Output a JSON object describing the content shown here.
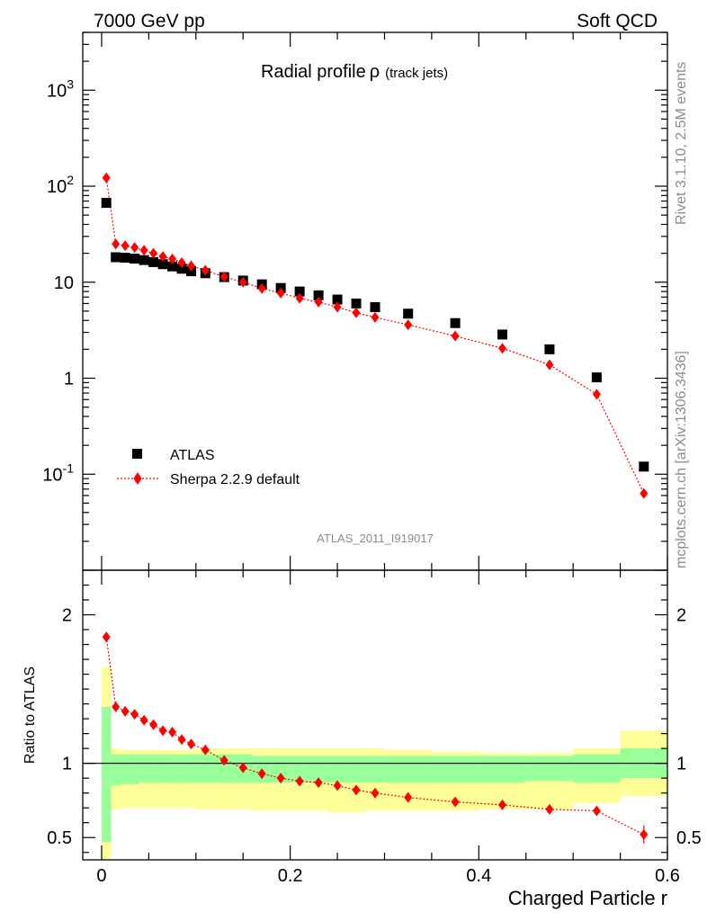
{
  "header": {
    "left": "7000 GeV pp",
    "right": "Soft QCD"
  },
  "side": {
    "top": "Rivet 3.1.10,  2.5M events",
    "bottom": "mcplots.cern.ch [arXiv:1306.3436]"
  },
  "chart_data": [
    {
      "type": "scatter",
      "title_main": "Radial profile",
      "title_symbol": "ρ",
      "title_sub": "(track jets)",
      "watermark": "ATLAS_2011_I919017",
      "xlabel": "Charged Particle r",
      "ylabel": "",
      "xlim": [
        -0.02,
        0.6
      ],
      "ylim": [
        0.01,
        4000
      ],
      "yscale": "log",
      "yticks": [
        "10^-1",
        "1",
        "10",
        "10^2",
        "10^3"
      ],
      "legend_position": "lower-left",
      "series": [
        {
          "name": "ATLAS",
          "marker": "square",
          "color": "#000000",
          "x": [
            0.005,
            0.015,
            0.025,
            0.035,
            0.045,
            0.055,
            0.065,
            0.075,
            0.085,
            0.095,
            0.11,
            0.13,
            0.15,
            0.17,
            0.19,
            0.21,
            0.23,
            0.25,
            0.27,
            0.29,
            0.325,
            0.375,
            0.425,
            0.475,
            0.525,
            0.575
          ],
          "y": [
            67,
            18.2,
            18.0,
            17.6,
            17.0,
            16.2,
            15.4,
            14.6,
            13.8,
            13.0,
            12.4,
            11.3,
            10.4,
            9.5,
            8.7,
            8.0,
            7.3,
            6.6,
            6.0,
            5.5,
            4.7,
            3.75,
            2.85,
            2.0,
            1.02,
            0.12
          ]
        },
        {
          "name": "Sherpa 2.2.9 default",
          "marker": "diamond",
          "line": "dotted",
          "color": "#ff0000",
          "x": [
            0.005,
            0.015,
            0.025,
            0.035,
            0.045,
            0.055,
            0.065,
            0.075,
            0.085,
            0.095,
            0.11,
            0.13,
            0.15,
            0.17,
            0.19,
            0.21,
            0.23,
            0.25,
            0.27,
            0.29,
            0.325,
            0.375,
            0.425,
            0.475,
            0.525,
            0.575
          ],
          "y": [
            122,
            25,
            24,
            23,
            21.5,
            20,
            18.5,
            17.5,
            16.0,
            14.8,
            13.3,
            11.4,
            10.0,
            8.6,
            7.7,
            6.8,
            6.2,
            5.5,
            4.8,
            4.3,
            3.6,
            2.75,
            2.05,
            1.38,
            0.68,
            0.063
          ]
        }
      ]
    },
    {
      "type": "scatter",
      "title": "",
      "xlabel": "Charged Particle r",
      "ylabel": "Ratio to ATLAS",
      "xlim": [
        -0.02,
        0.6
      ],
      "ylim": [
        0.35,
        2.3
      ],
      "xticks": [
        "0",
        "0.2",
        "0.4",
        "0.6"
      ],
      "yticks": [
        "0.5",
        "1",
        "2"
      ],
      "reference_line": 1,
      "bands": {
        "bins": [
          [
            0,
            0.01
          ],
          [
            0.01,
            0.02
          ],
          [
            0.02,
            0.03
          ],
          [
            0.03,
            0.04
          ],
          [
            0.04,
            0.05
          ],
          [
            0.05,
            0.06
          ],
          [
            0.06,
            0.07
          ],
          [
            0.07,
            0.08
          ],
          [
            0.08,
            0.09
          ],
          [
            0.09,
            0.1
          ],
          [
            0.1,
            0.12
          ],
          [
            0.12,
            0.14
          ],
          [
            0.14,
            0.16
          ],
          [
            0.16,
            0.18
          ],
          [
            0.18,
            0.2
          ],
          [
            0.2,
            0.22
          ],
          [
            0.22,
            0.24
          ],
          [
            0.24,
            0.26
          ],
          [
            0.26,
            0.28
          ],
          [
            0.28,
            0.3
          ],
          [
            0.3,
            0.35
          ],
          [
            0.35,
            0.4
          ],
          [
            0.4,
            0.45
          ],
          [
            0.45,
            0.5
          ],
          [
            0.5,
            0.55
          ],
          [
            0.55,
            0.6
          ]
        ],
        "yellow_low": [
          0.35,
          0.69,
          0.7,
          0.7,
          0.7,
          0.7,
          0.7,
          0.7,
          0.7,
          0.7,
          0.69,
          0.69,
          0.69,
          0.68,
          0.68,
          0.68,
          0.68,
          0.67,
          0.67,
          0.68,
          0.68,
          0.68,
          0.69,
          0.69,
          0.73,
          0.78
        ],
        "yellow_high": [
          1.65,
          1.1,
          1.09,
          1.09,
          1.09,
          1.09,
          1.09,
          1.09,
          1.09,
          1.09,
          1.1,
          1.1,
          1.1,
          1.1,
          1.1,
          1.1,
          1.1,
          1.1,
          1.1,
          1.1,
          1.09,
          1.08,
          1.07,
          1.07,
          1.1,
          1.22
        ],
        "green_low": [
          0.47,
          0.85,
          0.86,
          0.86,
          0.87,
          0.87,
          0.87,
          0.87,
          0.87,
          0.87,
          0.87,
          0.87,
          0.87,
          0.87,
          0.87,
          0.87,
          0.87,
          0.87,
          0.87,
          0.87,
          0.87,
          0.87,
          0.87,
          0.88,
          0.87,
          0.9
        ],
        "green_high": [
          1.38,
          1.06,
          1.06,
          1.06,
          1.06,
          1.06,
          1.06,
          1.06,
          1.06,
          1.06,
          1.06,
          1.06,
          1.06,
          1.05,
          1.05,
          1.05,
          1.05,
          1.05,
          1.05,
          1.05,
          1.05,
          1.05,
          1.05,
          1.05,
          1.06,
          1.1
        ]
      },
      "series": [
        {
          "name": "Sherpa 2.2.9 default",
          "marker": "diamond",
          "line": "dotted",
          "color": "#ff0000",
          "x": [
            0.005,
            0.015,
            0.025,
            0.035,
            0.045,
            0.055,
            0.065,
            0.075,
            0.085,
            0.095,
            0.11,
            0.13,
            0.15,
            0.17,
            0.19,
            0.21,
            0.23,
            0.25,
            0.27,
            0.29,
            0.325,
            0.375,
            0.425,
            0.475,
            0.525,
            0.575
          ],
          "y": [
            1.85,
            1.38,
            1.35,
            1.33,
            1.29,
            1.26,
            1.22,
            1.21,
            1.16,
            1.13,
            1.09,
            1.02,
            0.97,
            0.93,
            0.9,
            0.88,
            0.87,
            0.85,
            0.82,
            0.8,
            0.77,
            0.74,
            0.72,
            0.69,
            0.68,
            0.52
          ]
        }
      ]
    }
  ],
  "colors": {
    "data": "#000000",
    "mc": "#ff0000",
    "band_outer": "#ffff99",
    "band_inner": "#99ff99"
  }
}
